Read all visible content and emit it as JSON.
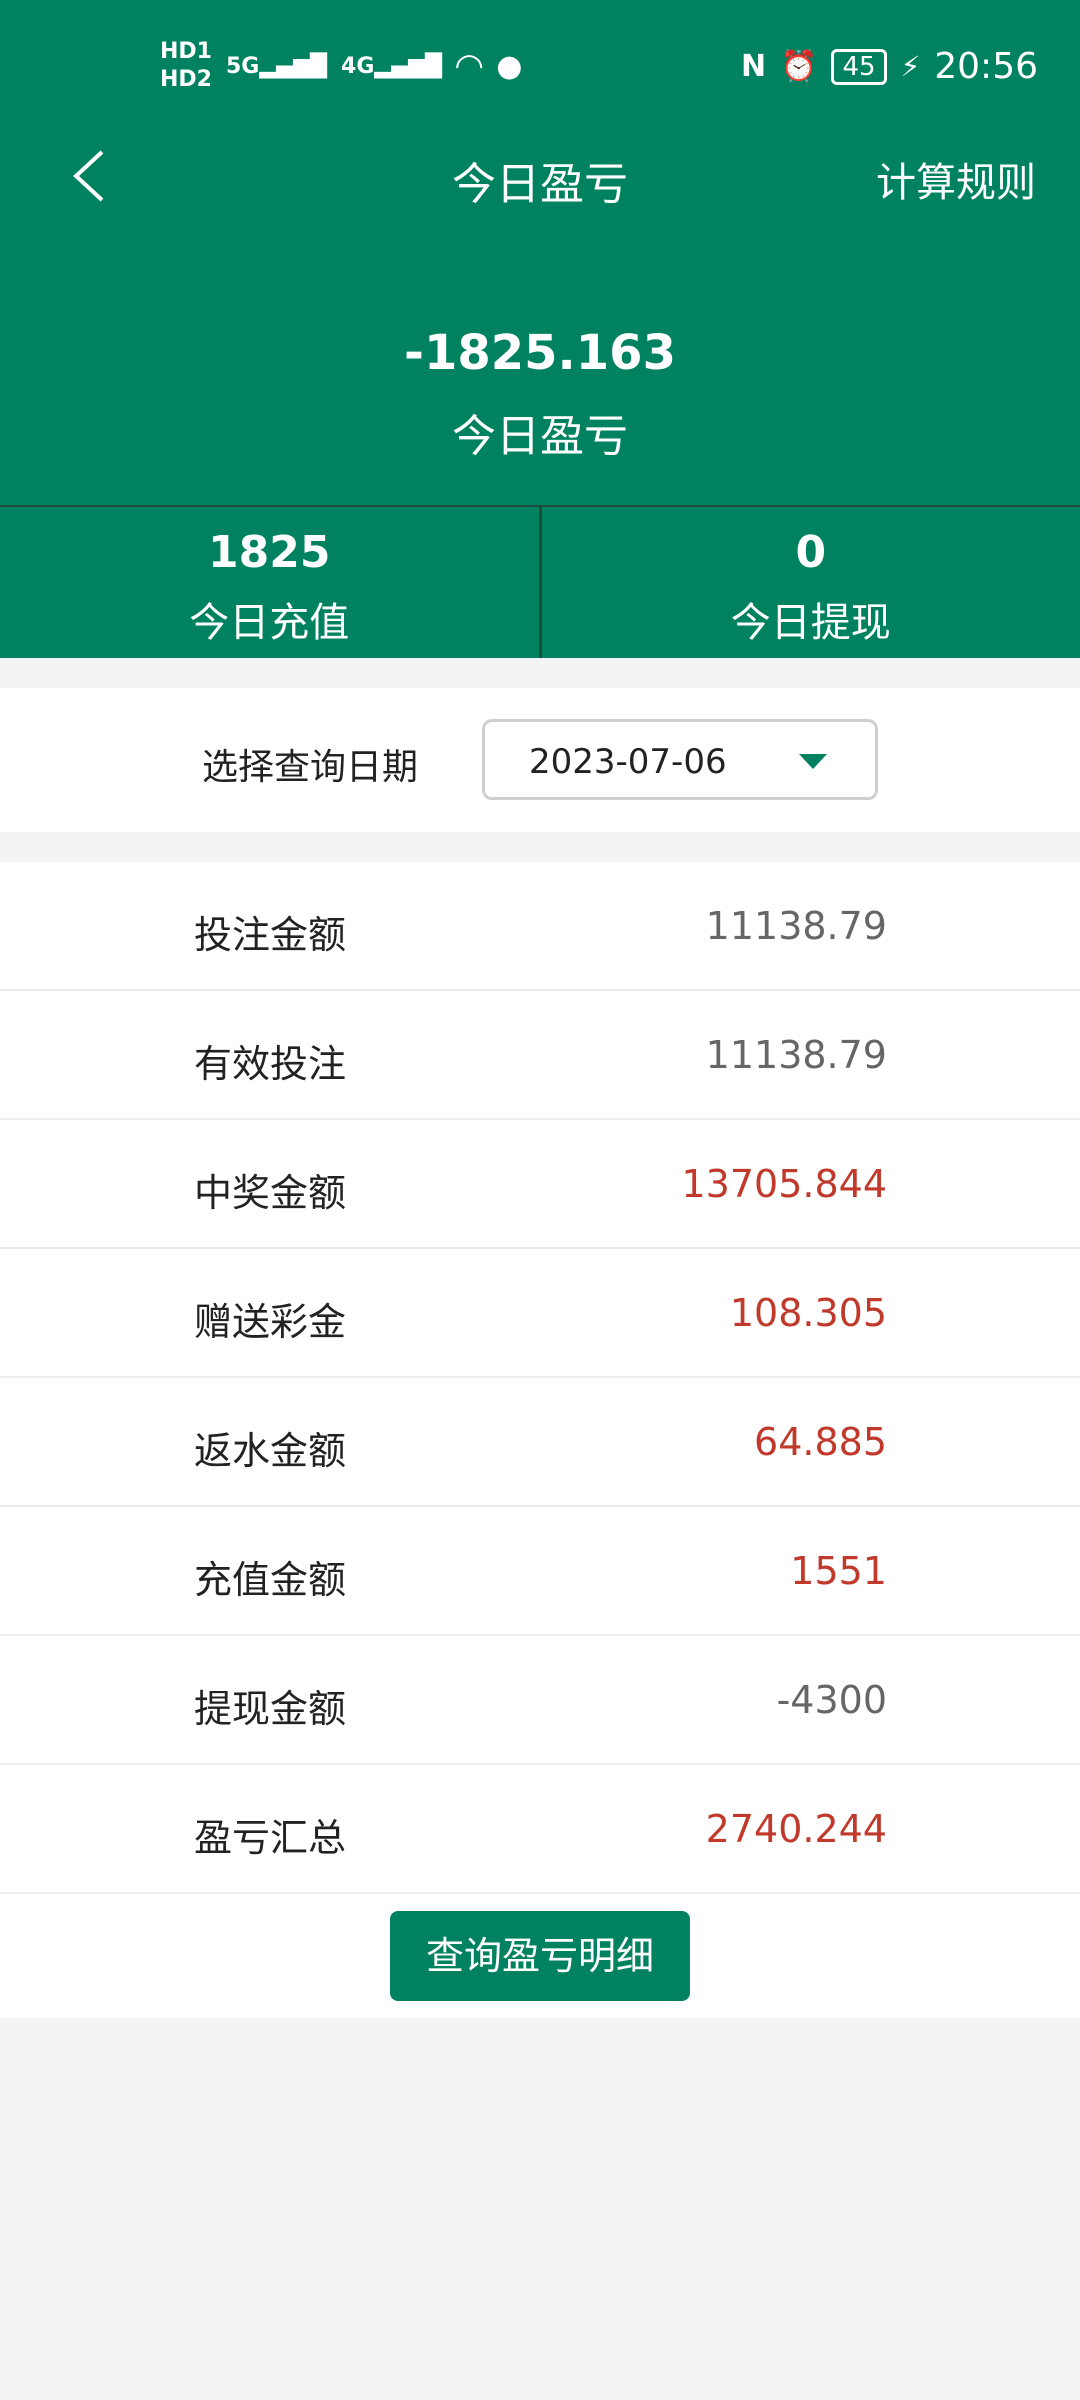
{
  "status_bar": {
    "left": [
      "HD1",
      "HD2",
      "5G",
      "4G"
    ],
    "battery": "45",
    "time": "20:56",
    "icons": [
      "signal-icon",
      "wifi-icon",
      "wechat-icon",
      "nfc-icon",
      "alarm-icon",
      "battery-icon",
      "charging-icon"
    ]
  },
  "nav": {
    "title": "今日盈亏",
    "rules": "计算规则"
  },
  "summary": {
    "value": "-1825.163",
    "label": "今日盈亏"
  },
  "stats": [
    {
      "value": "1825",
      "label": "今日充值"
    },
    {
      "value": "0",
      "label": "今日提现"
    }
  ],
  "date": {
    "label": "选择查询日期",
    "value": "2023-07-06"
  },
  "rows": [
    {
      "label": "投注金额",
      "value": "11138.79",
      "color": "#666666"
    },
    {
      "label": "有效投注",
      "value": "11138.79",
      "color": "#666666"
    },
    {
      "label": "中奖金额",
      "value": "13705.844",
      "color": "#c0392b"
    },
    {
      "label": "赠送彩金",
      "value": "108.305",
      "color": "#c0392b"
    },
    {
      "label": "返水金额",
      "value": "64.885",
      "color": "#c0392b"
    },
    {
      "label": "充值金额",
      "value": "1551",
      "color": "#c0392b"
    },
    {
      "label": "提现金额",
      "value": "-4300",
      "color": "#666666"
    },
    {
      "label": "盈亏汇总",
      "value": "2740.244",
      "color": "#c0392b"
    }
  ],
  "button": "查询盈亏明细",
  "colors": {
    "brand": "#008260",
    "positive": "#c0392b",
    "neutral": "#666666"
  }
}
